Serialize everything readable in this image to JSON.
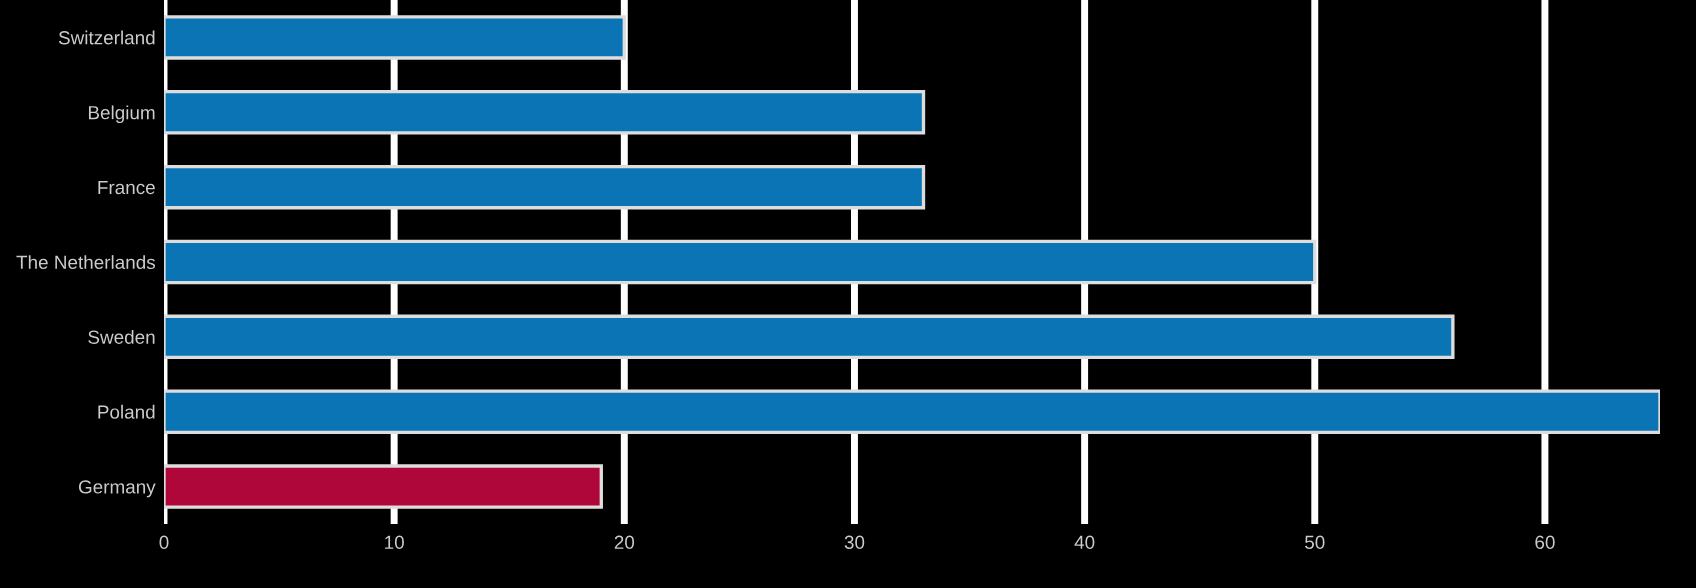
{
  "chart_data": {
    "type": "bar",
    "orientation": "horizontal",
    "categories": [
      "Switzerland",
      "Belgium",
      "France",
      "The Netherlands",
      "Sweden",
      "Poland",
      "Germany"
    ],
    "values": [
      20,
      33,
      33,
      50,
      56,
      65,
      19
    ],
    "colors": [
      "#0a74b4",
      "#0a74b4",
      "#0a74b4",
      "#0a74b4",
      "#0a74b4",
      "#0a74b4",
      "#b0073a"
    ],
    "xlim": [
      0,
      65
    ],
    "xticks": [
      0,
      10,
      20,
      30,
      40,
      50,
      60
    ],
    "grid": "x"
  }
}
